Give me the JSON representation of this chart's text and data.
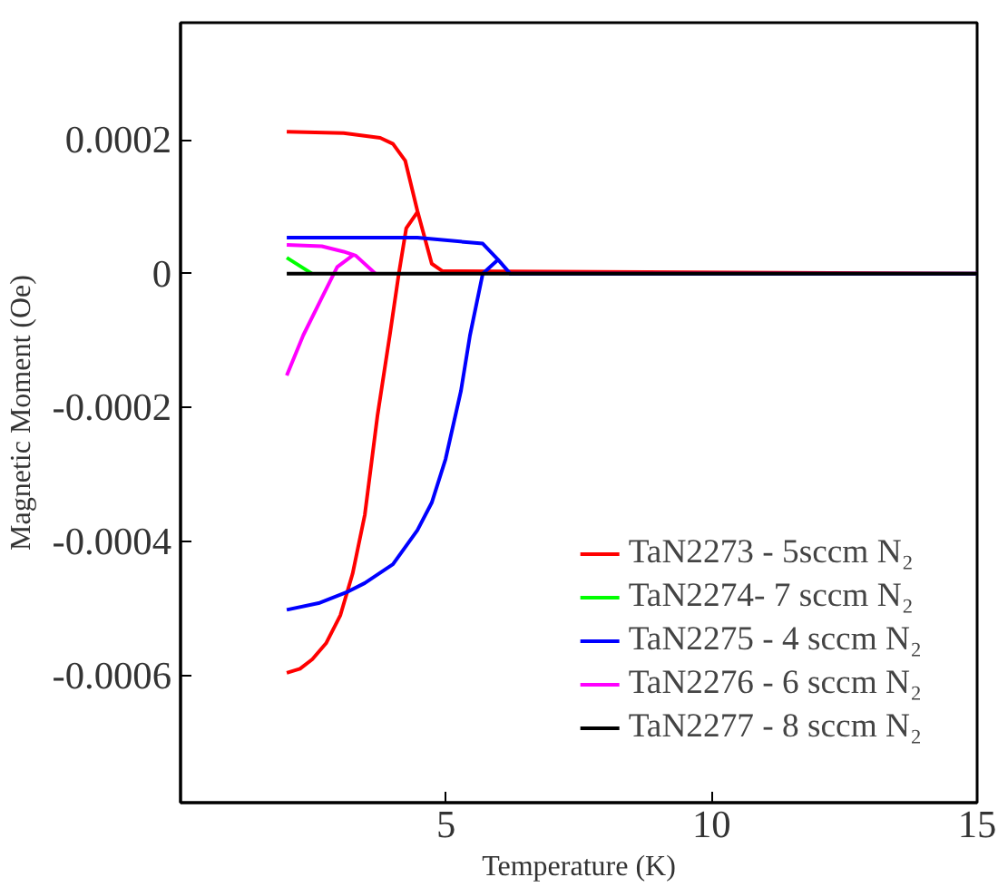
{
  "chart_data": {
    "type": "line",
    "xlabel": "Temperature (K)",
    "ylabel": "Magnetic Moment (Oe)",
    "xlim": [
      0,
      15
    ],
    "xticks": [
      5,
      10,
      15
    ],
    "ylim": [
      -0.00079,
      0.000375
    ],
    "yticks": [
      {
        "value": 0.0002,
        "label": "0.0002"
      },
      0,
      {
        "value": -0.0002,
        "label": "-0.0002"
      },
      {
        "value": -0.0004,
        "label": "-0.0004"
      },
      {
        "value": -0.0006,
        "label": "-0.0006"
      }
    ],
    "grid": false,
    "legend": "bottom right",
    "marker": "none",
    "line_style": "solid",
    "series": [
      {
        "name": "TaN2273 - 5sccm N₂",
        "color": "#ff0000",
        "x": [
          2,
          3.07,
          3.76,
          4.0,
          4.23,
          4.46,
          4.73,
          4.93,
          15,
          null,
          2,
          2.25,
          2.48,
          2.74,
          3.01,
          3.24,
          3.47,
          3.71,
          3.94,
          4.11,
          4.25,
          4.46
        ],
        "values": [
          0.000212,
          0.00021,
          0.000203,
          0.000194,
          0.000169,
          9.4e-05,
          1.5e-05,
          4e-06,
          0,
          null,
          -0.000596,
          -0.00059,
          -0.000576,
          -0.000552,
          -0.00051,
          -0.000448,
          -0.00036,
          -0.000211,
          -9.2e-05,
          0,
          6.8e-05,
          9.2e-05
        ]
      },
      {
        "name": "TaN2274- 7 sccm N₂",
        "color": "#00ff00",
        "x": [
          2,
          2.48
        ],
        "values": [
          2.4e-05,
          0
        ]
      },
      {
        "name": "TaN2275 - 4 sccm N₂",
        "color": "#0000ff",
        "x": [
          2,
          4.46,
          5.69,
          5.98,
          6.21,
          15,
          null,
          2,
          2.6,
          3.12,
          3.47,
          4.0,
          4.46,
          4.73,
          4.99,
          5.28,
          5.45,
          5.69,
          5.98
        ],
        "values": [
          5.4e-05,
          5.4e-05,
          4.5e-05,
          2.1e-05,
          0,
          0,
          null,
          -0.000502,
          -0.000492,
          -0.000476,
          -0.000462,
          -0.000434,
          -0.000383,
          -0.000342,
          -0.000277,
          -0.000175,
          -9.2e-05,
          0,
          2.1e-05
        ]
      },
      {
        "name": "TaN2276 - 6 sccm N₂",
        "color": "#ff00ff",
        "x": [
          2,
          2.66,
          3.07,
          3.3,
          3.67,
          null,
          2,
          2.31,
          2.66,
          2.95,
          3.27
        ],
        "values": [
          4.3e-05,
          4.1e-05,
          3.3e-05,
          2.7e-05,
          0,
          null,
          -0.000152,
          -9.2e-05,
          -3.6e-05,
          1e-05,
          2.9e-05
        ]
      },
      {
        "name": "TaN2277 - 8 sccm N₂",
        "color": "#000000",
        "x": [
          2,
          15
        ],
        "values": [
          0,
          0
        ]
      }
    ]
  }
}
